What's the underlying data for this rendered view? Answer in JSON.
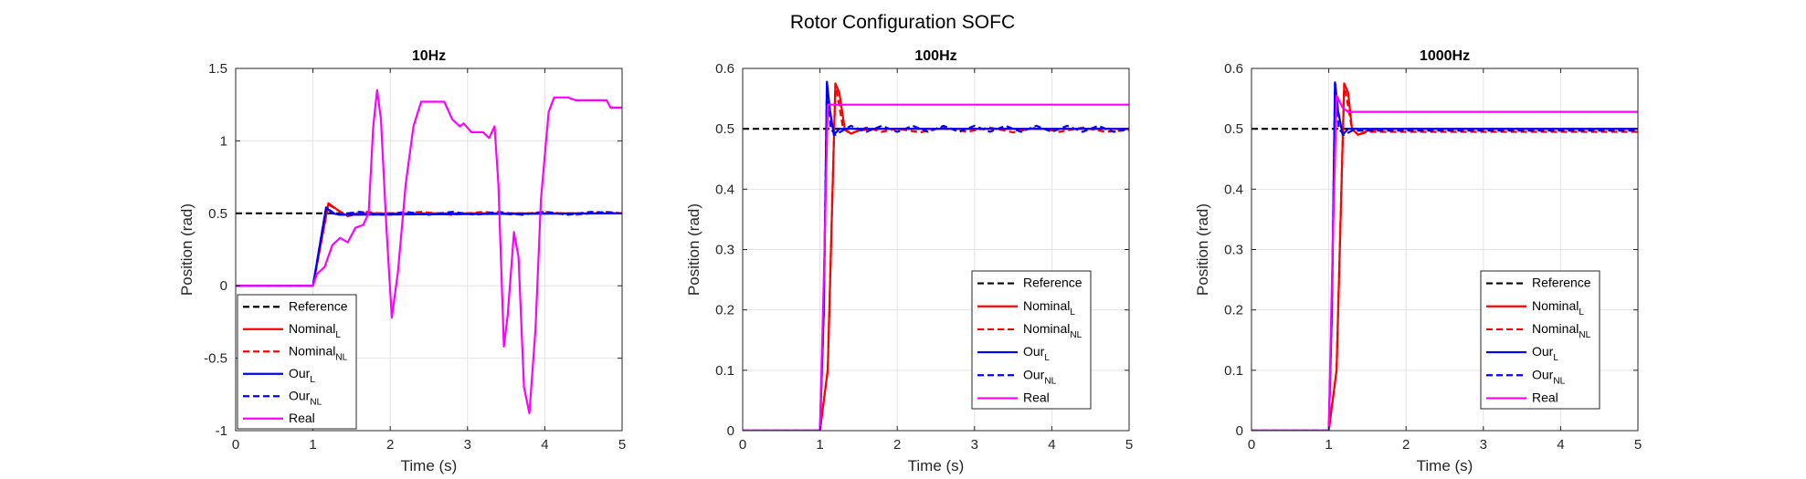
{
  "figure": {
    "suptitle": "Rotor Configuration SOFC"
  },
  "chart_data": [
    {
      "type": "line",
      "title": "10Hz",
      "xlabel": "Time (s)",
      "ylabel": "Position (rad)",
      "xlim": [
        0,
        5
      ],
      "ylim": [
        -1,
        1.5
      ],
      "xticks": [
        0,
        1,
        2,
        3,
        4,
        5
      ],
      "yticks": [
        -1,
        -0.5,
        0,
        0.5,
        1,
        1.5
      ],
      "ytick_labels": [
        "-1",
        "-0.5",
        "0",
        "0.5",
        "1",
        "1.5"
      ],
      "grid": true,
      "legend_position": "bottom-left",
      "series": [
        {
          "name": "Reference",
          "subscript": "",
          "color": "#000000",
          "dash": "dashed",
          "points": [
            [
              0,
              0.5
            ],
            [
              5,
              0.5
            ]
          ]
        },
        {
          "name": "Nominal",
          "subscript": "L",
          "color": "#ff0000",
          "dash": "solid",
          "points": [
            [
              0,
              0
            ],
            [
              1,
              0
            ],
            [
              1.2,
              0.57
            ],
            [
              1.3,
              0.53
            ],
            [
              1.4,
              0.49
            ],
            [
              1.6,
              0.5
            ],
            [
              5,
              0.5
            ]
          ]
        },
        {
          "name": "Nominal",
          "subscript": "NL",
          "color": "#ff0000",
          "dash": "dashed",
          "points": [
            [
              0,
              0
            ],
            [
              1,
              0
            ],
            [
              1.2,
              0.56
            ],
            [
              1.3,
              0.53
            ],
            [
              1.45,
              0.48
            ],
            [
              1.7,
              0.51
            ],
            [
              2,
              0.49
            ],
            [
              2.4,
              0.51
            ],
            [
              2.8,
              0.49
            ],
            [
              3.2,
              0.51
            ],
            [
              3.6,
              0.49
            ],
            [
              4,
              0.51
            ],
            [
              4.4,
              0.49
            ],
            [
              4.8,
              0.51
            ],
            [
              5,
              0.5
            ]
          ]
        },
        {
          "name": "Our",
          "subscript": "L",
          "color": "#0000ff",
          "dash": "solid",
          "points": [
            [
              0,
              0
            ],
            [
              1,
              0
            ],
            [
              1.17,
              0.54
            ],
            [
              1.25,
              0.5
            ],
            [
              1.35,
              0.49
            ],
            [
              5,
              0.5
            ]
          ]
        },
        {
          "name": "Our",
          "subscript": "NL",
          "color": "#0000ff",
          "dash": "dashed",
          "points": [
            [
              0,
              0
            ],
            [
              1,
              0
            ],
            [
              1.17,
              0.54
            ],
            [
              1.3,
              0.49
            ],
            [
              1.6,
              0.51
            ],
            [
              1.9,
              0.49
            ],
            [
              2.2,
              0.51
            ],
            [
              2.5,
              0.49
            ],
            [
              2.8,
              0.51
            ],
            [
              3.1,
              0.49
            ],
            [
              3.4,
              0.51
            ],
            [
              3.7,
              0.49
            ],
            [
              4,
              0.51
            ],
            [
              4.3,
              0.49
            ],
            [
              4.6,
              0.51
            ],
            [
              5,
              0.5
            ]
          ]
        },
        {
          "name": "Real",
          "subscript": "",
          "color": "#ff00ff",
          "dash": "solid",
          "points": [
            [
              0,
              0
            ],
            [
              1,
              0
            ],
            [
              1.05,
              0.08
            ],
            [
              1.15,
              0.13
            ],
            [
              1.25,
              0.28
            ],
            [
              1.35,
              0.33
            ],
            [
              1.45,
              0.3
            ],
            [
              1.55,
              0.4
            ],
            [
              1.65,
              0.42
            ],
            [
              1.72,
              0.5
            ],
            [
              1.78,
              1.1
            ],
            [
              1.83,
              1.35
            ],
            [
              1.88,
              1.15
            ],
            [
              1.95,
              0.4
            ],
            [
              2.02,
              -0.22
            ],
            [
              2.1,
              0.1
            ],
            [
              2.2,
              0.7
            ],
            [
              2.3,
              1.1
            ],
            [
              2.4,
              1.27
            ],
            [
              2.6,
              1.27
            ],
            [
              2.7,
              1.27
            ],
            [
              2.8,
              1.15
            ],
            [
              2.9,
              1.1
            ],
            [
              2.95,
              1.12
            ],
            [
              3.05,
              1.06
            ],
            [
              3.2,
              1.06
            ],
            [
              3.28,
              1.02
            ],
            [
              3.35,
              1.1
            ],
            [
              3.4,
              0.7
            ],
            [
              3.47,
              -0.42
            ],
            [
              3.52,
              -0.2
            ],
            [
              3.6,
              0.37
            ],
            [
              3.66,
              0.2
            ],
            [
              3.73,
              -0.7
            ],
            [
              3.8,
              -0.88
            ],
            [
              3.88,
              -0.3
            ],
            [
              3.95,
              0.6
            ],
            [
              4.05,
              1.2
            ],
            [
              4.12,
              1.3
            ],
            [
              4.3,
              1.3
            ],
            [
              4.4,
              1.28
            ],
            [
              4.8,
              1.28
            ],
            [
              4.85,
              1.23
            ],
            [
              5,
              1.23
            ]
          ]
        }
      ]
    },
    {
      "type": "line",
      "title": "100Hz",
      "xlabel": "Time (s)",
      "ylabel": "Position (rad)",
      "xlim": [
        0,
        5
      ],
      "ylim": [
        0,
        0.6
      ],
      "xticks": [
        0,
        1,
        2,
        3,
        4,
        5
      ],
      "yticks": [
        0,
        0.1,
        0.2,
        0.3,
        0.4,
        0.5,
        0.6
      ],
      "ytick_labels": [
        "0",
        "0.1",
        "0.2",
        "0.3",
        "0.4",
        "0.5",
        "0.6"
      ],
      "grid": true,
      "legend_position": "bottom-right",
      "series": [
        {
          "name": "Reference",
          "subscript": "",
          "color": "#000000",
          "dash": "dashed",
          "points": [
            [
              0,
              0.5
            ],
            [
              5,
              0.5
            ]
          ]
        },
        {
          "name": "Nominal",
          "subscript": "L",
          "color": "#ff0000",
          "dash": "solid",
          "points": [
            [
              0,
              0
            ],
            [
              1,
              0
            ],
            [
              1.1,
              0.1
            ],
            [
              1.2,
              0.575
            ],
            [
              1.25,
              0.56
            ],
            [
              1.32,
              0.5
            ],
            [
              1.4,
              0.492
            ],
            [
              1.5,
              0.497
            ],
            [
              1.7,
              0.5
            ],
            [
              5,
              0.5
            ]
          ]
        },
        {
          "name": "Nominal",
          "subscript": "NL",
          "color": "#ff0000",
          "dash": "dashed",
          "points": [
            [
              0,
              0
            ],
            [
              1,
              0
            ],
            [
              1.1,
              0.1
            ],
            [
              1.2,
              0.575
            ],
            [
              1.3,
              0.5
            ],
            [
              1.4,
              0.492
            ],
            [
              1.6,
              0.502
            ],
            [
              1.8,
              0.495
            ],
            [
              2,
              0.5
            ],
            [
              2.3,
              0.494
            ],
            [
              2.6,
              0.503
            ],
            [
              2.9,
              0.495
            ],
            [
              3.2,
              0.502
            ],
            [
              3.5,
              0.494
            ],
            [
              3.8,
              0.502
            ],
            [
              4.1,
              0.495
            ],
            [
              4.4,
              0.502
            ],
            [
              4.7,
              0.495
            ],
            [
              5,
              0.498
            ]
          ]
        },
        {
          "name": "Our",
          "subscript": "L",
          "color": "#0000ff",
          "dash": "solid",
          "points": [
            [
              0,
              0
            ],
            [
              1,
              0
            ],
            [
              1.05,
              0.2
            ],
            [
              1.09,
              0.578
            ],
            [
              1.13,
              0.53
            ],
            [
              1.18,
              0.49
            ],
            [
              1.25,
              0.5
            ],
            [
              5,
              0.5
            ]
          ]
        },
        {
          "name": "Our",
          "subscript": "NL",
          "color": "#0000ff",
          "dash": "dashed",
          "points": [
            [
              0,
              0
            ],
            [
              1,
              0
            ],
            [
              1.05,
              0.2
            ],
            [
              1.09,
              0.575
            ],
            [
              1.14,
              0.5
            ],
            [
              1.2,
              0.49
            ],
            [
              1.4,
              0.505
            ],
            [
              1.6,
              0.495
            ],
            [
              1.8,
              0.505
            ],
            [
              2,
              0.495
            ],
            [
              2.2,
              0.505
            ],
            [
              2.4,
              0.495
            ],
            [
              2.6,
              0.505
            ],
            [
              2.8,
              0.495
            ],
            [
              3,
              0.505
            ],
            [
              3.2,
              0.495
            ],
            [
              3.4,
              0.505
            ],
            [
              3.6,
              0.495
            ],
            [
              3.8,
              0.505
            ],
            [
              4,
              0.495
            ],
            [
              4.2,
              0.505
            ],
            [
              4.4,
              0.495
            ],
            [
              4.6,
              0.505
            ],
            [
              4.8,
              0.495
            ],
            [
              5,
              0.5
            ]
          ]
        },
        {
          "name": "Real",
          "subscript": "",
          "color": "#ff00ff",
          "dash": "solid",
          "points": [
            [
              0,
              0
            ],
            [
              1,
              0
            ],
            [
              1.05,
              0.25
            ],
            [
              1.1,
              0.54
            ],
            [
              5,
              0.54
            ]
          ]
        }
      ]
    },
    {
      "type": "line",
      "title": "1000Hz",
      "xlabel": "Time (s)",
      "ylabel": "Position (rad)",
      "xlim": [
        0,
        5
      ],
      "ylim": [
        0,
        0.6
      ],
      "xticks": [
        0,
        1,
        2,
        3,
        4,
        5
      ],
      "yticks": [
        0,
        0.1,
        0.2,
        0.3,
        0.4,
        0.5,
        0.6
      ],
      "ytick_labels": [
        "0",
        "0.1",
        "0.2",
        "0.3",
        "0.4",
        "0.5",
        "0.6"
      ],
      "grid": true,
      "legend_position": "bottom-right",
      "series": [
        {
          "name": "Reference",
          "subscript": "",
          "color": "#000000",
          "dash": "dashed",
          "points": [
            [
              0,
              0.5
            ],
            [
              5,
              0.5
            ]
          ]
        },
        {
          "name": "Nominal",
          "subscript": "L",
          "color": "#ff0000",
          "dash": "solid",
          "points": [
            [
              0,
              0
            ],
            [
              1,
              0
            ],
            [
              1.1,
              0.1
            ],
            [
              1.2,
              0.575
            ],
            [
              1.25,
              0.56
            ],
            [
              1.3,
              0.5
            ],
            [
              1.38,
              0.49
            ],
            [
              1.5,
              0.497
            ],
            [
              1.7,
              0.5
            ],
            [
              5,
              0.5
            ]
          ]
        },
        {
          "name": "Nominal",
          "subscript": "NL",
          "color": "#ff0000",
          "dash": "dashed",
          "points": [
            [
              0,
              0
            ],
            [
              1,
              0
            ],
            [
              1.1,
              0.1
            ],
            [
              1.2,
              0.575
            ],
            [
              1.3,
              0.5
            ],
            [
              1.38,
              0.49
            ],
            [
              1.5,
              0.495
            ],
            [
              5,
              0.495
            ]
          ]
        },
        {
          "name": "Our",
          "subscript": "L",
          "color": "#0000ff",
          "dash": "solid",
          "points": [
            [
              0,
              0
            ],
            [
              1,
              0
            ],
            [
              1.04,
              0.2
            ],
            [
              1.08,
              0.577
            ],
            [
              1.12,
              0.53
            ],
            [
              1.18,
              0.49
            ],
            [
              1.25,
              0.5
            ],
            [
              5,
              0.5
            ]
          ]
        },
        {
          "name": "Our",
          "subscript": "NL",
          "color": "#0000ff",
          "dash": "dashed",
          "points": [
            [
              0,
              0
            ],
            [
              1,
              0
            ],
            [
              1.04,
              0.2
            ],
            [
              1.08,
              0.575
            ],
            [
              1.13,
              0.5
            ],
            [
              1.2,
              0.49
            ],
            [
              1.3,
              0.497
            ],
            [
              5,
              0.497
            ]
          ]
        },
        {
          "name": "Real",
          "subscript": "",
          "color": "#ff00ff",
          "dash": "solid",
          "points": [
            [
              0,
              0
            ],
            [
              1,
              0
            ],
            [
              1.05,
              0.3
            ],
            [
              1.1,
              0.555
            ],
            [
              1.18,
              0.535
            ],
            [
              1.25,
              0.528
            ],
            [
              5,
              0.528
            ]
          ]
        }
      ]
    }
  ]
}
